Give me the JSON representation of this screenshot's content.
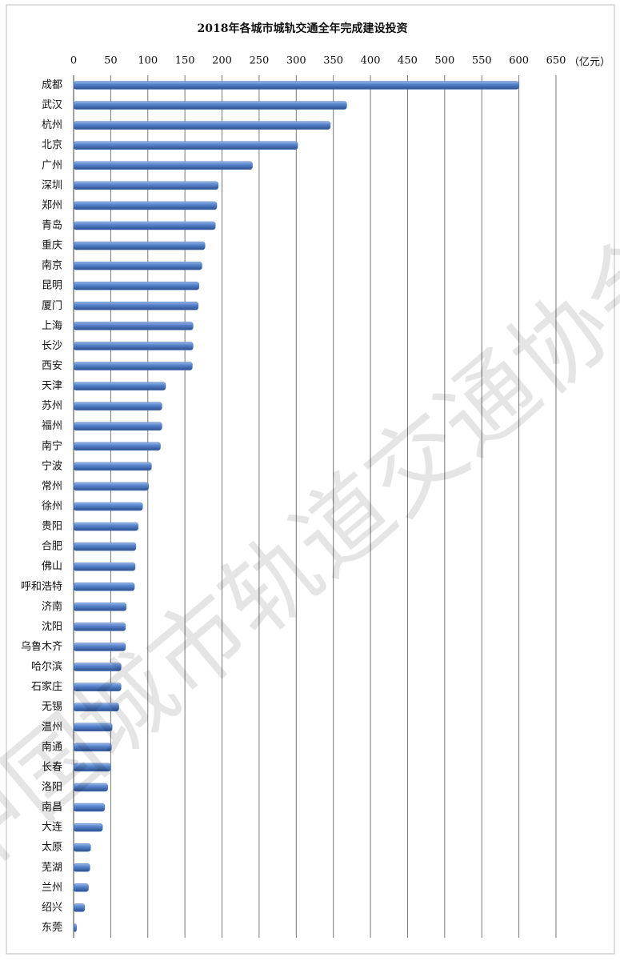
{
  "chart_data": {
    "type": "barh",
    "title": "2018年各城市城轨交通全年完成建设投资",
    "x_unit": "（亿元）",
    "watermark": "中国城市轨道交通协会",
    "categories": [
      "成都",
      "武汉",
      "杭州",
      "北京",
      "广州",
      "深圳",
      "郑州",
      "青岛",
      "重庆",
      "南京",
      "昆明",
      "厦门",
      "上海",
      "长沙",
      "西安",
      "天津",
      "苏州",
      "福州",
      "南宁",
      "宁波",
      "常州",
      "徐州",
      "贵阳",
      "合肥",
      "佛山",
      "呼和浩特",
      "济南",
      "沈阳",
      "乌鲁木齐",
      "哈尔滨",
      "石家庄",
      "无锡",
      "温州",
      "南通",
      "长春",
      "洛阳",
      "南昌",
      "大连",
      "太原",
      "芜湖",
      "兰州",
      "绍兴",
      "东莞"
    ],
    "values": [
      600,
      368,
      346,
      302,
      241,
      195,
      193,
      191,
      177,
      173,
      169,
      168,
      161,
      161,
      160,
      124,
      119,
      119,
      117,
      105,
      101,
      93,
      87,
      84,
      83,
      82,
      71,
      70,
      70,
      64,
      64,
      61,
      52,
      51,
      50,
      46,
      42,
      39,
      23,
      22,
      20,
      15,
      4
    ],
    "color": "#4a78c0",
    "xlim": [
      0,
      650
    ],
    "xticks": [
      0,
      50,
      100,
      150,
      200,
      250,
      300,
      350,
      400,
      450,
      500,
      550,
      600,
      650
    ],
    "grid": true
  }
}
